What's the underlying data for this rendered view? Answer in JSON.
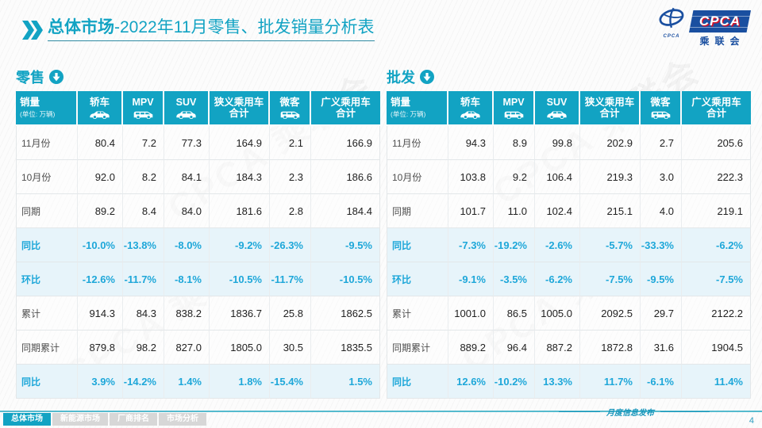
{
  "page": {
    "title_bold": "总体市场",
    "title_rest": "-2022年11月零售、批发销量分析表",
    "watermark": "CPCA 乘联会",
    "release_note": "月度信息发布",
    "page_number": "4"
  },
  "logo": {
    "emblem_caption": "CPCA",
    "acronym": "CPCA",
    "org_name": "乘联会"
  },
  "columns": [
    {
      "name": "col-sales",
      "label": "销量",
      "sub": "(单位: 万辆)"
    },
    {
      "name": "col-sedan",
      "label": "轿车",
      "icon": "sedan-icon"
    },
    {
      "name": "col-mpv",
      "label": "MPV",
      "icon": "mpv-icon"
    },
    {
      "name": "col-suv",
      "label": "SUV",
      "icon": "suv-icon"
    },
    {
      "name": "col-narrow-pv",
      "label": "狭义乘用车",
      "label2": "合计"
    },
    {
      "name": "col-microvan",
      "label": "微客",
      "icon": "microvan-icon"
    },
    {
      "name": "col-broad-pv",
      "label": "广义乘用车",
      "label2": "合计"
    }
  ],
  "tables": [
    {
      "section": "零售",
      "rows": [
        {
          "label": "11月份",
          "type": "value",
          "values": [
            "80.4",
            "7.2",
            "77.3",
            "164.9",
            "2.1",
            "166.9"
          ]
        },
        {
          "label": "10月份",
          "type": "value",
          "values": [
            "92.0",
            "8.2",
            "84.1",
            "184.3",
            "2.3",
            "186.6"
          ]
        },
        {
          "label": "同期",
          "type": "value",
          "values": [
            "89.2",
            "8.4",
            "84.0",
            "181.6",
            "2.8",
            "184.4"
          ]
        },
        {
          "label": "同比",
          "type": "percent",
          "values": [
            "-10.0%",
            "-13.8%",
            "-8.0%",
            "-9.2%",
            "-26.3%",
            "-9.5%"
          ]
        },
        {
          "label": "环比",
          "type": "percent",
          "values": [
            "-12.6%",
            "-11.7%",
            "-8.1%",
            "-10.5%",
            "-11.7%",
            "-10.5%"
          ]
        },
        {
          "label": "累计",
          "type": "value",
          "values": [
            "914.3",
            "84.3",
            "838.2",
            "1836.7",
            "25.8",
            "1862.5"
          ]
        },
        {
          "label": "同期累计",
          "type": "value",
          "values": [
            "879.8",
            "98.2",
            "827.0",
            "1805.0",
            "30.5",
            "1835.5"
          ]
        },
        {
          "label": "同比",
          "type": "percent",
          "values": [
            "3.9%",
            "-14.2%",
            "1.4%",
            "1.8%",
            "-15.4%",
            "1.5%"
          ]
        }
      ]
    },
    {
      "section": "批发",
      "rows": [
        {
          "label": "11月份",
          "type": "value",
          "values": [
            "94.3",
            "8.9",
            "99.8",
            "202.9",
            "2.7",
            "205.6"
          ]
        },
        {
          "label": "10月份",
          "type": "value",
          "values": [
            "103.8",
            "9.2",
            "106.4",
            "219.3",
            "3.0",
            "222.3"
          ]
        },
        {
          "label": "同期",
          "type": "value",
          "values": [
            "101.7",
            "11.0",
            "102.4",
            "215.1",
            "4.0",
            "219.1"
          ]
        },
        {
          "label": "同比",
          "type": "percent",
          "values": [
            "-7.3%",
            "-19.2%",
            "-2.6%",
            "-5.7%",
            "-33.3%",
            "-6.2%"
          ]
        },
        {
          "label": "环比",
          "type": "percent",
          "values": [
            "-9.1%",
            "-3.5%",
            "-6.2%",
            "-7.5%",
            "-9.5%",
            "-7.5%"
          ]
        },
        {
          "label": "累计",
          "type": "value",
          "values": [
            "1001.0",
            "86.5",
            "1005.0",
            "2092.5",
            "29.7",
            "2122.2"
          ]
        },
        {
          "label": "同期累计",
          "type": "value",
          "values": [
            "889.2",
            "96.4",
            "887.2",
            "1872.8",
            "31.6",
            "1904.5"
          ]
        },
        {
          "label": "同比",
          "type": "percent",
          "values": [
            "12.6%",
            "-10.2%",
            "13.3%",
            "11.7%",
            "-6.1%",
            "11.4%"
          ]
        }
      ]
    }
  ],
  "footer": {
    "tabs": [
      {
        "name": "tab-overall-market",
        "label": "总体市场",
        "active": true
      },
      {
        "name": "tab-nev-market",
        "label": "新能源市场",
        "active": false
      },
      {
        "name": "tab-manufacturer-ranking",
        "label": "厂商排名",
        "active": false
      },
      {
        "name": "tab-market-analysis",
        "label": "市场分析",
        "active": false
      }
    ]
  },
  "colors": {
    "accent_teal": "#12a3c3",
    "percent_blue": "#1ea7d9",
    "percent_row_bg": "#e7f4fa",
    "logo_blue": "#1a4fa0",
    "logo_red": "#d31228",
    "inactive_tab_gray": "#d7d7d7"
  }
}
